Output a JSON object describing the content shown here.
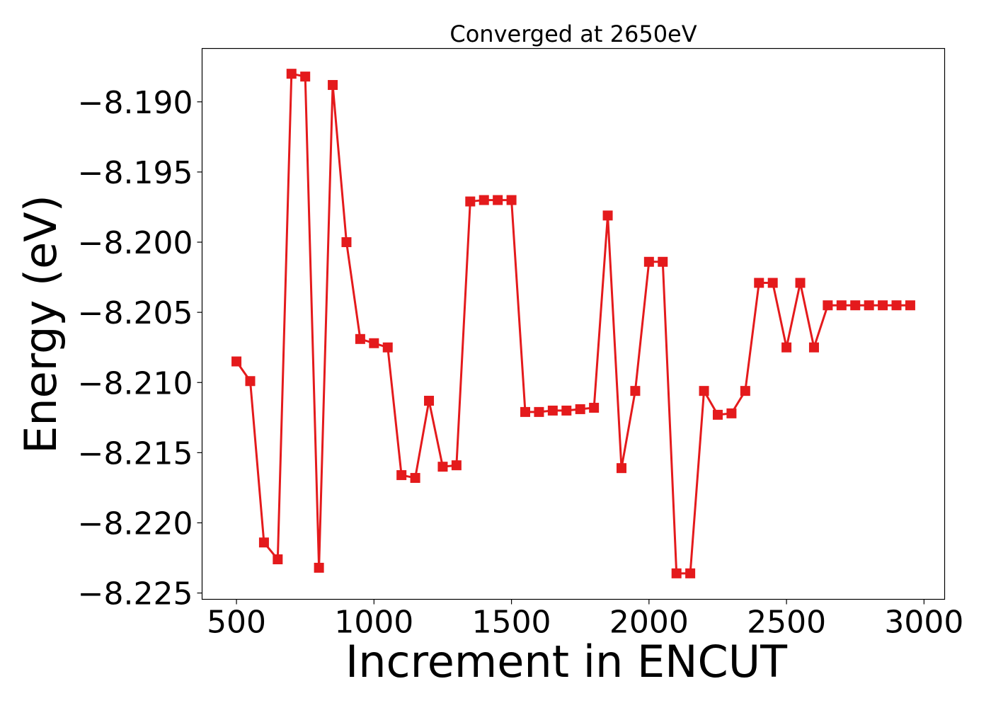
{
  "chart_data": {
    "type": "line",
    "title": "Converged at 2650eV",
    "xlabel": "Increment in ENCUT",
    "ylabel": "Energy (eV)",
    "xlim": [
      375,
      3075
    ],
    "ylim": [
      -8.22545,
      -8.1862
    ],
    "xticks": [
      500,
      1000,
      1500,
      2000,
      2500,
      3000
    ],
    "xtick_labels": [
      "500",
      "1000",
      "1500",
      "2000",
      "2500",
      "3000"
    ],
    "yticks": [
      -8.19,
      -8.195,
      -8.2,
      -8.205,
      -8.21,
      -8.215,
      -8.22,
      -8.225
    ],
    "ytick_labels": [
      "−8.190",
      "−8.195",
      "−8.200",
      "−8.205",
      "−8.210",
      "−8.215",
      "−8.220",
      "−8.225"
    ],
    "grid": false,
    "series": [
      {
        "color": "#e41a1c",
        "marker": "square",
        "x": [
          500,
          550,
          600,
          650,
          700,
          750,
          800,
          850,
          900,
          950,
          1000,
          1050,
          1100,
          1150,
          1200,
          1250,
          1300,
          1350,
          1400,
          1450,
          1500,
          1550,
          1600,
          1650,
          1700,
          1750,
          1800,
          1850,
          1900,
          1950,
          2000,
          2050,
          2100,
          2150,
          2200,
          2250,
          2300,
          2350,
          2400,
          2450,
          2500,
          2550,
          2600,
          2650,
          2700,
          2750,
          2800,
          2850,
          2900,
          2950
        ],
        "y": [
          -8.2085,
          -8.2099,
          -8.2214,
          -8.2226,
          -8.188,
          -8.1882,
          -8.2232,
          -8.1888,
          -8.2,
          -8.2069,
          -8.2072,
          -8.2075,
          -8.2166,
          -8.2168,
          -8.2113,
          -8.216,
          -8.2159,
          -8.1971,
          -8.197,
          -8.197,
          -8.197,
          -8.2121,
          -8.2121,
          -8.212,
          -8.212,
          -8.2119,
          -8.2118,
          -8.1981,
          -8.2161,
          -8.2106,
          -8.2014,
          -8.2014,
          -8.2236,
          -8.2236,
          -8.2106,
          -8.2123,
          -8.2122,
          -8.2106,
          -8.2029,
          -8.2029,
          -8.2075,
          -8.2029,
          -8.2075,
          -8.2045,
          -8.2045,
          -8.2045,
          -8.2045,
          -8.2045,
          -8.2045,
          -8.2045
        ]
      }
    ]
  }
}
